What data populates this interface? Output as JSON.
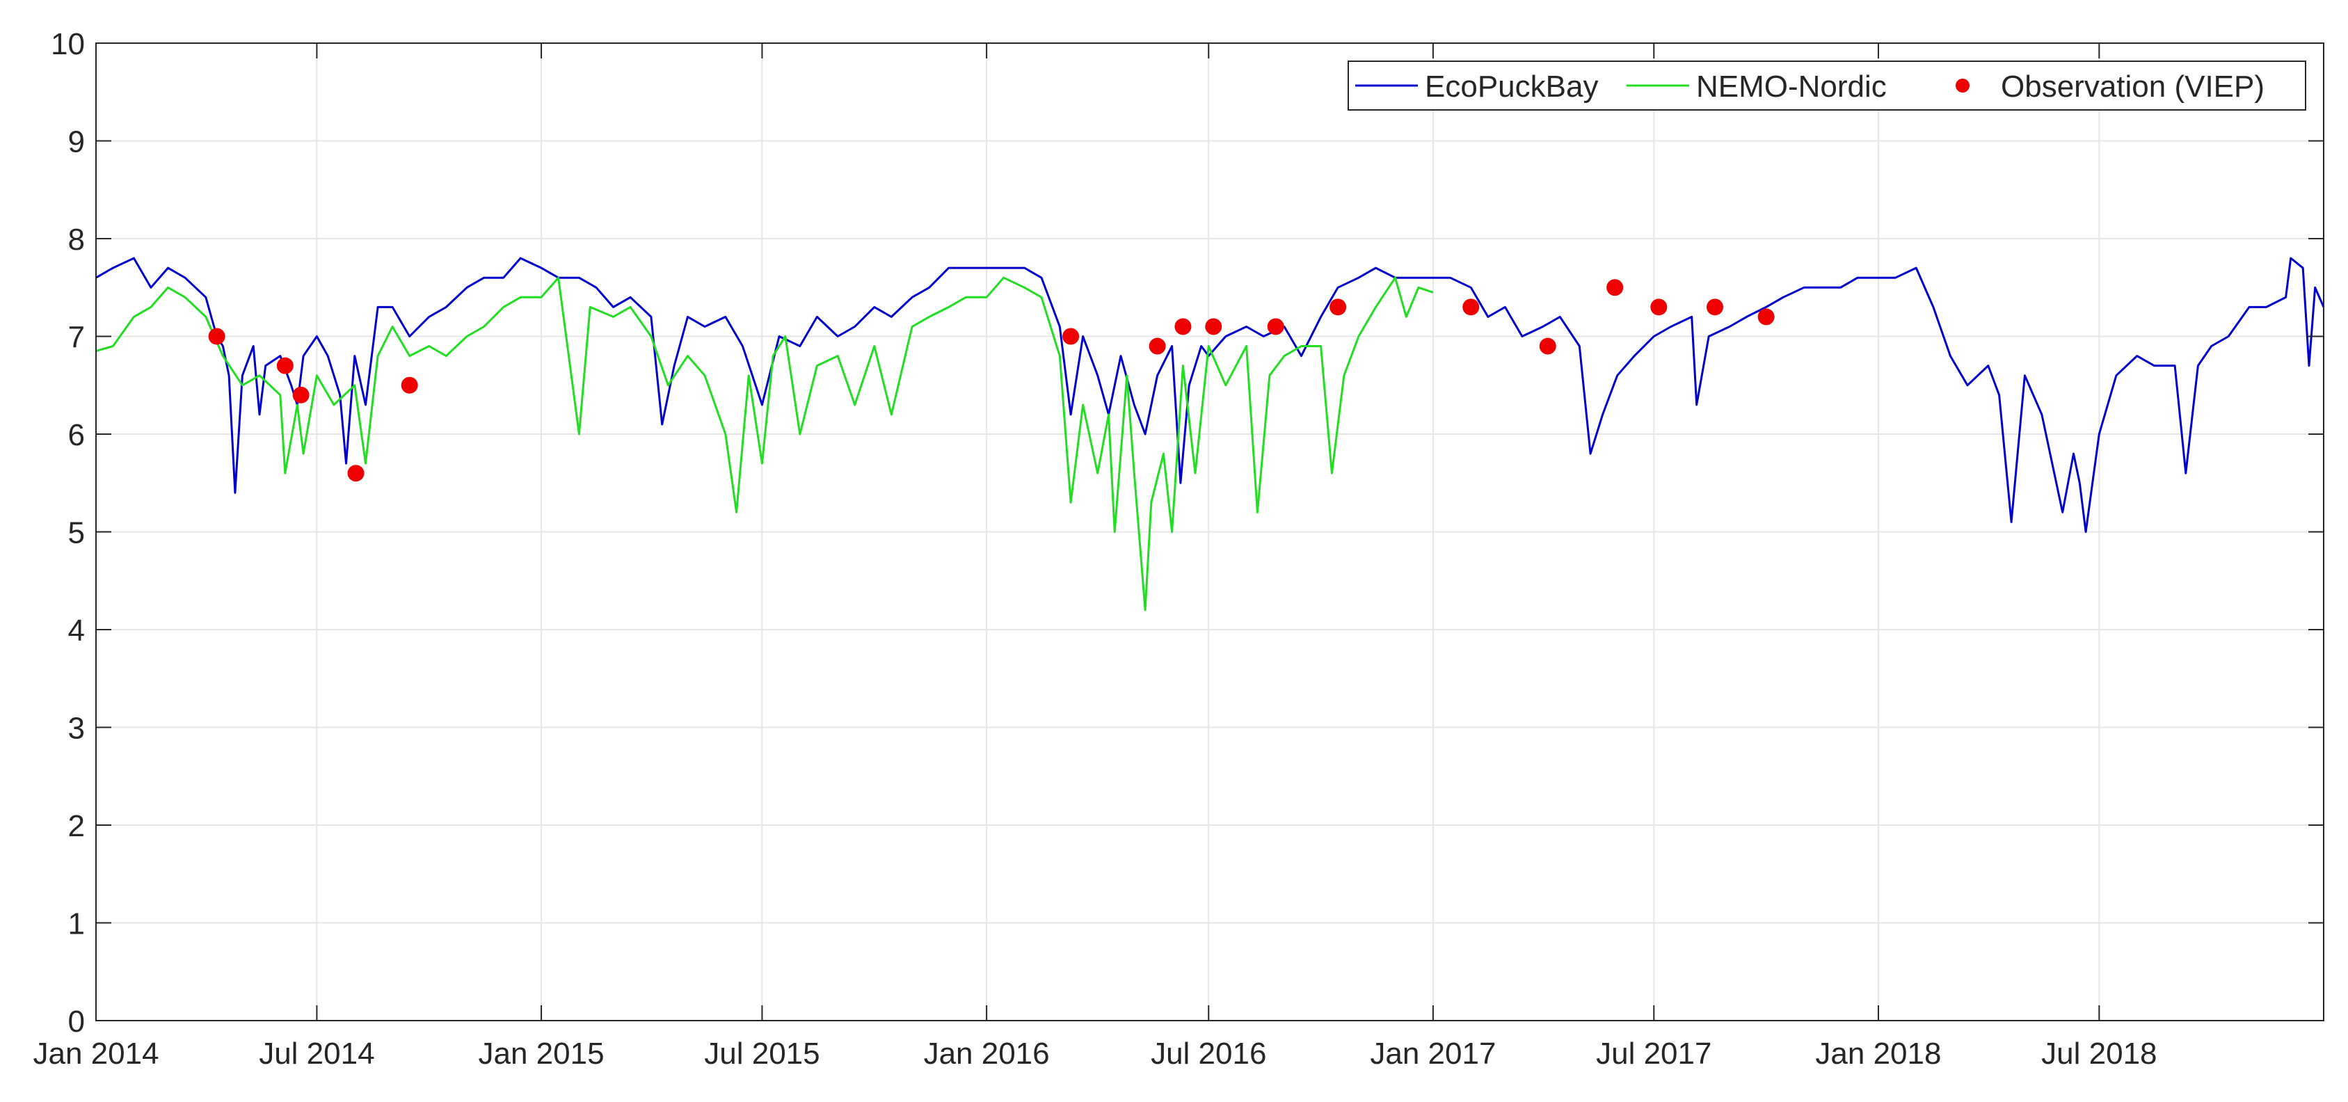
{
  "chart_data": {
    "type": "line",
    "title": "",
    "xlabel": "",
    "ylabel": "",
    "xlim": [
      "2014-01-01",
      "2019-01-01"
    ],
    "ylim": [
      0,
      10
    ],
    "x_ticks": [
      "2014-01-01",
      "2014-07-01",
      "2015-01-01",
      "2015-07-01",
      "2016-01-01",
      "2016-07-01",
      "2017-01-01",
      "2017-07-01",
      "2018-01-01",
      "2018-07-01"
    ],
    "x_tick_labels": [
      "Jan 2014",
      "Jul 2014",
      "Jan 2015",
      "Jul 2015",
      "Jan 2016",
      "Jul 2016",
      "Jan 2017",
      "Jul 2017",
      "Jan 2018",
      "Jul 2018"
    ],
    "y_ticks": [
      0,
      1,
      2,
      3,
      4,
      5,
      6,
      7,
      8,
      9,
      10
    ],
    "y_tick_labels": [
      "0",
      "1",
      "2",
      "3",
      "4",
      "5",
      "6",
      "7",
      "8",
      "9",
      "10"
    ],
    "grid": true,
    "legend_position": "top-right",
    "series": [
      {
        "name": "EcoPuckBay",
        "kind": "line",
        "color": "#0000cc",
        "points": [
          [
            "2014-01-01",
            7.6
          ],
          [
            "2014-01-15",
            7.7
          ],
          [
            "2014-02-01",
            7.8
          ],
          [
            "2014-02-15",
            7.5
          ],
          [
            "2014-03-01",
            7.7
          ],
          [
            "2014-03-15",
            7.6
          ],
          [
            "2014-04-01",
            7.4
          ],
          [
            "2014-04-10",
            7.0
          ],
          [
            "2014-04-15",
            6.9
          ],
          [
            "2014-04-20",
            6.6
          ],
          [
            "2014-04-25",
            5.4
          ],
          [
            "2014-05-01",
            6.6
          ],
          [
            "2014-05-10",
            6.9
          ],
          [
            "2014-05-15",
            6.2
          ],
          [
            "2014-05-20",
            6.7
          ],
          [
            "2014-06-01",
            6.8
          ],
          [
            "2014-06-10",
            6.5
          ],
          [
            "2014-06-15",
            6.3
          ],
          [
            "2014-06-20",
            6.8
          ],
          [
            "2014-07-01",
            7.0
          ],
          [
            "2014-07-10",
            6.8
          ],
          [
            "2014-07-20",
            6.4
          ],
          [
            "2014-07-25",
            5.7
          ],
          [
            "2014-08-01",
            6.8
          ],
          [
            "2014-08-10",
            6.3
          ],
          [
            "2014-08-20",
            7.3
          ],
          [
            "2014-09-01",
            7.3
          ],
          [
            "2014-09-15",
            7.0
          ],
          [
            "2014-10-01",
            7.2
          ],
          [
            "2014-10-15",
            7.3
          ],
          [
            "2014-11-01",
            7.5
          ],
          [
            "2014-11-15",
            7.6
          ],
          [
            "2014-12-01",
            7.6
          ],
          [
            "2014-12-15",
            7.8
          ],
          [
            "2015-01-01",
            7.7
          ],
          [
            "2015-01-15",
            7.6
          ],
          [
            "2015-02-01",
            7.6
          ],
          [
            "2015-02-15",
            7.5
          ],
          [
            "2015-03-01",
            7.3
          ],
          [
            "2015-03-15",
            7.4
          ],
          [
            "2015-04-01",
            7.2
          ],
          [
            "2015-04-10",
            6.1
          ],
          [
            "2015-04-20",
            6.7
          ],
          [
            "2015-05-01",
            7.2
          ],
          [
            "2015-05-15",
            7.1
          ],
          [
            "2015-06-01",
            7.2
          ],
          [
            "2015-06-15",
            6.9
          ],
          [
            "2015-07-01",
            6.3
          ],
          [
            "2015-07-15",
            7.0
          ],
          [
            "2015-08-01",
            6.9
          ],
          [
            "2015-08-15",
            7.2
          ],
          [
            "2015-09-01",
            7.0
          ],
          [
            "2015-09-15",
            7.1
          ],
          [
            "2015-10-01",
            7.3
          ],
          [
            "2015-10-15",
            7.2
          ],
          [
            "2015-11-01",
            7.4
          ],
          [
            "2015-11-15",
            7.5
          ],
          [
            "2015-12-01",
            7.7
          ],
          [
            "2015-12-15",
            7.7
          ],
          [
            "2016-01-01",
            7.7
          ],
          [
            "2016-01-15",
            7.7
          ],
          [
            "2016-02-01",
            7.7
          ],
          [
            "2016-02-15",
            7.6
          ],
          [
            "2016-03-01",
            7.1
          ],
          [
            "2016-03-10",
            6.2
          ],
          [
            "2016-03-20",
            7.0
          ],
          [
            "2016-04-01",
            6.6
          ],
          [
            "2016-04-10",
            6.2
          ],
          [
            "2016-04-20",
            6.8
          ],
          [
            "2016-05-01",
            6.3
          ],
          [
            "2016-05-10",
            6.0
          ],
          [
            "2016-05-20",
            6.6
          ],
          [
            "2016-06-01",
            6.9
          ],
          [
            "2016-06-08",
            5.5
          ],
          [
            "2016-06-15",
            6.5
          ],
          [
            "2016-06-25",
            6.9
          ],
          [
            "2016-07-01",
            6.8
          ],
          [
            "2016-07-15",
            7.0
          ],
          [
            "2016-08-01",
            7.1
          ],
          [
            "2016-08-15",
            7.0
          ],
          [
            "2016-09-01",
            7.1
          ],
          [
            "2016-09-15",
            6.8
          ],
          [
            "2016-10-01",
            7.2
          ],
          [
            "2016-10-15",
            7.5
          ],
          [
            "2016-11-01",
            7.6
          ],
          [
            "2016-11-15",
            7.7
          ],
          [
            "2016-12-01",
            7.6
          ],
          [
            "2016-12-15",
            7.6
          ],
          [
            "2017-01-01",
            7.6
          ],
          [
            "2017-01-15",
            7.6
          ],
          [
            "2017-02-01",
            7.5
          ],
          [
            "2017-02-15",
            7.2
          ],
          [
            "2017-03-01",
            7.3
          ],
          [
            "2017-03-15",
            7.0
          ],
          [
            "2017-04-01",
            7.1
          ],
          [
            "2017-04-15",
            7.2
          ],
          [
            "2017-05-01",
            6.9
          ],
          [
            "2017-05-10",
            5.8
          ],
          [
            "2017-05-20",
            6.2
          ],
          [
            "2017-06-01",
            6.6
          ],
          [
            "2017-06-15",
            6.8
          ],
          [
            "2017-07-01",
            7.0
          ],
          [
            "2017-07-15",
            7.1
          ],
          [
            "2017-08-01",
            7.2
          ],
          [
            "2017-08-05",
            6.3
          ],
          [
            "2017-08-15",
            7.0
          ],
          [
            "2017-09-01",
            7.1
          ],
          [
            "2017-09-15",
            7.2
          ],
          [
            "2017-10-01",
            7.3
          ],
          [
            "2017-10-15",
            7.4
          ],
          [
            "2017-11-01",
            7.5
          ],
          [
            "2017-11-15",
            7.5
          ],
          [
            "2017-12-01",
            7.5
          ],
          [
            "2017-12-15",
            7.6
          ],
          [
            "2018-01-01",
            7.6
          ],
          [
            "2018-01-15",
            7.6
          ],
          [
            "2018-02-01",
            7.7
          ],
          [
            "2018-02-15",
            7.3
          ],
          [
            "2018-03-01",
            6.8
          ],
          [
            "2018-03-15",
            6.5
          ],
          [
            "2018-04-01",
            6.7
          ],
          [
            "2018-04-10",
            6.4
          ],
          [
            "2018-04-20",
            5.1
          ],
          [
            "2018-05-01",
            6.6
          ],
          [
            "2018-05-15",
            6.2
          ],
          [
            "2018-06-01",
            5.2
          ],
          [
            "2018-06-10",
            5.8
          ],
          [
            "2018-06-15",
            5.5
          ],
          [
            "2018-06-20",
            5.0
          ],
          [
            "2018-07-01",
            6.0
          ],
          [
            "2018-07-15",
            6.6
          ],
          [
            "2018-08-01",
            6.8
          ],
          [
            "2018-08-15",
            6.7
          ],
          [
            "2018-09-01",
            6.7
          ],
          [
            "2018-09-10",
            5.6
          ],
          [
            "2018-09-20",
            6.7
          ],
          [
            "2018-10-01",
            6.9
          ],
          [
            "2018-10-15",
            7.0
          ],
          [
            "2018-11-01",
            7.3
          ],
          [
            "2018-11-15",
            7.3
          ],
          [
            "2018-12-01",
            7.4
          ],
          [
            "2018-12-05",
            7.8
          ],
          [
            "2018-12-15",
            7.7
          ],
          [
            "2018-12-20",
            6.7
          ],
          [
            "2018-12-25",
            7.5
          ],
          [
            "2019-01-01",
            7.3
          ]
        ]
      },
      {
        "name": "NEMO-Nordic",
        "kind": "line",
        "color": "#22dd22",
        "points": [
          [
            "2014-01-01",
            6.85
          ],
          [
            "2014-01-15",
            6.9
          ],
          [
            "2014-02-01",
            7.2
          ],
          [
            "2014-02-15",
            7.3
          ],
          [
            "2014-03-01",
            7.5
          ],
          [
            "2014-03-15",
            7.4
          ],
          [
            "2014-04-01",
            7.2
          ],
          [
            "2014-04-15",
            6.8
          ],
          [
            "2014-05-01",
            6.5
          ],
          [
            "2014-05-15",
            6.6
          ],
          [
            "2014-06-01",
            6.4
          ],
          [
            "2014-06-05",
            5.6
          ],
          [
            "2014-06-15",
            6.3
          ],
          [
            "2014-06-20",
            5.8
          ],
          [
            "2014-07-01",
            6.6
          ],
          [
            "2014-07-15",
            6.3
          ],
          [
            "2014-08-01",
            6.5
          ],
          [
            "2014-08-10",
            5.7
          ],
          [
            "2014-08-20",
            6.8
          ],
          [
            "2014-09-01",
            7.1
          ],
          [
            "2014-09-15",
            6.8
          ],
          [
            "2014-10-01",
            6.9
          ],
          [
            "2014-10-15",
            6.8
          ],
          [
            "2014-11-01",
            7.0
          ],
          [
            "2014-11-15",
            7.1
          ],
          [
            "2014-12-01",
            7.3
          ],
          [
            "2014-12-15",
            7.4
          ],
          [
            "2015-01-01",
            7.4
          ],
          [
            "2015-01-15",
            7.6
          ],
          [
            "2015-02-01",
            6.0
          ],
          [
            "2015-02-10",
            7.3
          ],
          [
            "2015-03-01",
            7.2
          ],
          [
            "2015-03-15",
            7.3
          ],
          [
            "2015-04-01",
            7.0
          ],
          [
            "2015-04-15",
            6.5
          ],
          [
            "2015-05-01",
            6.8
          ],
          [
            "2015-05-15",
            6.6
          ],
          [
            "2015-06-01",
            6.0
          ],
          [
            "2015-06-10",
            5.2
          ],
          [
            "2015-06-20",
            6.6
          ],
          [
            "2015-07-01",
            5.7
          ],
          [
            "2015-07-10",
            6.8
          ],
          [
            "2015-07-20",
            7.0
          ],
          [
            "2015-08-01",
            6.0
          ],
          [
            "2015-08-15",
            6.7
          ],
          [
            "2015-09-01",
            6.8
          ],
          [
            "2015-09-15",
            6.3
          ],
          [
            "2015-10-01",
            6.9
          ],
          [
            "2015-10-15",
            6.2
          ],
          [
            "2015-11-01",
            7.1
          ],
          [
            "2015-11-15",
            7.2
          ],
          [
            "2015-12-01",
            7.3
          ],
          [
            "2015-12-15",
            7.4
          ],
          [
            "2016-01-01",
            7.4
          ],
          [
            "2016-01-15",
            7.6
          ],
          [
            "2016-02-01",
            7.5
          ],
          [
            "2016-02-15",
            7.4
          ],
          [
            "2016-03-01",
            6.8
          ],
          [
            "2016-03-10",
            5.3
          ],
          [
            "2016-03-20",
            6.3
          ],
          [
            "2016-04-01",
            5.6
          ],
          [
            "2016-04-10",
            6.2
          ],
          [
            "2016-04-15",
            5.0
          ],
          [
            "2016-04-25",
            6.6
          ],
          [
            "2016-05-01",
            5.6
          ],
          [
            "2016-05-10",
            4.2
          ],
          [
            "2016-05-15",
            5.3
          ],
          [
            "2016-05-25",
            5.8
          ],
          [
            "2016-06-01",
            5.0
          ],
          [
            "2016-06-10",
            6.7
          ],
          [
            "2016-06-20",
            5.6
          ],
          [
            "2016-07-01",
            6.9
          ],
          [
            "2016-07-15",
            6.5
          ],
          [
            "2016-08-01",
            6.9
          ],
          [
            "2016-08-10",
            5.2
          ],
          [
            "2016-08-20",
            6.6
          ],
          [
            "2016-09-01",
            6.8
          ],
          [
            "2016-09-15",
            6.9
          ],
          [
            "2016-10-01",
            6.9
          ],
          [
            "2016-10-10",
            5.6
          ],
          [
            "2016-10-20",
            6.6
          ],
          [
            "2016-11-01",
            7.0
          ],
          [
            "2016-11-15",
            7.3
          ],
          [
            "2016-12-01",
            7.6
          ],
          [
            "2016-12-10",
            7.2
          ],
          [
            "2016-12-20",
            7.5
          ],
          [
            "2017-01-01",
            7.45
          ]
        ]
      },
      {
        "name": "Observation (VIEP)",
        "kind": "scatter",
        "color": "#ee0000",
        "points": [
          [
            "2014-04-10",
            7.0
          ],
          [
            "2014-06-05",
            6.7
          ],
          [
            "2014-06-18",
            6.4
          ],
          [
            "2014-08-02",
            5.6
          ],
          [
            "2014-09-15",
            6.5
          ],
          [
            "2016-03-10",
            7.0
          ],
          [
            "2016-05-20",
            6.9
          ],
          [
            "2016-06-10",
            7.1
          ],
          [
            "2016-07-05",
            7.1
          ],
          [
            "2016-08-25",
            7.1
          ],
          [
            "2016-10-15",
            7.3
          ],
          [
            "2017-02-01",
            7.3
          ],
          [
            "2017-04-05",
            6.9
          ],
          [
            "2017-05-30",
            7.5
          ],
          [
            "2017-07-05",
            7.3
          ],
          [
            "2017-08-20",
            7.3
          ],
          [
            "2017-10-01",
            7.2
          ]
        ]
      }
    ]
  }
}
